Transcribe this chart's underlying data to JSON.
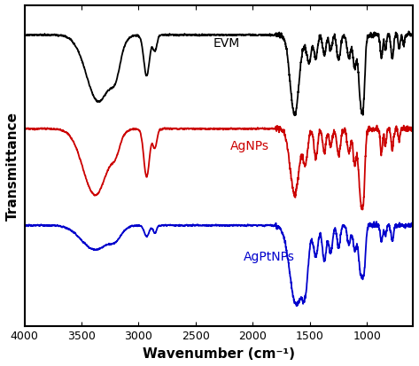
{
  "xlabel": "Wavenumber (cm⁻¹)",
  "ylabel": "Transmittance",
  "xticks": [
    4000,
    3500,
    3000,
    2500,
    2000,
    1500,
    1000
  ],
  "colors": {
    "EVM": "#000000",
    "AgNPs": "#cc0000",
    "AgPtNPs": "#0000cc"
  },
  "labels": {
    "EVM": "EVM",
    "AgNPs": "AgNPs",
    "AgPtNPs": "AgPtNPs"
  },
  "label_positions": {
    "EVM": [
      2350,
      0.0
    ],
    "AgNPs": [
      2200,
      0.0
    ],
    "AgPtNPs": [
      2100,
      0.0
    ]
  }
}
